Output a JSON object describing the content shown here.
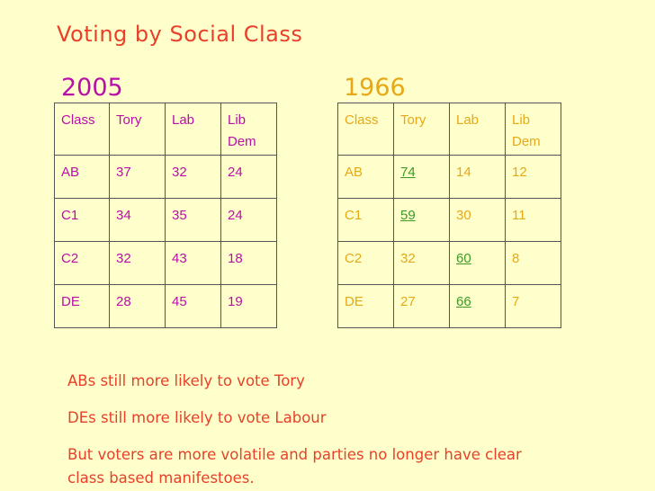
{
  "title": "Voting by Social Class",
  "table_2005": {
    "year": "2005",
    "headers": [
      "Class",
      "Tory",
      "Lab",
      "Lib Dem"
    ],
    "rows": [
      [
        "AB",
        "37",
        "32",
        "24"
      ],
      [
        "C1",
        "34",
        "35",
        "24"
      ],
      [
        "C2",
        "32",
        "43",
        "18"
      ],
      [
        "DE",
        "28",
        "45",
        "19"
      ]
    ]
  },
  "table_1966": {
    "year": "1966",
    "headers": [
      "Class",
      "Tory",
      "Lab",
      "Lib Dem"
    ],
    "rows": [
      [
        "AB",
        "74",
        "14",
        "12"
      ],
      [
        "C1",
        "59",
        "30",
        "11"
      ],
      [
        "C2",
        "32",
        "60",
        "8"
      ],
      [
        "DE",
        "27",
        "66",
        "7"
      ]
    ]
  },
  "notes": [
    "ABs still more likely to vote Tory",
    "DEs still more likely to vote Labour",
    "But voters are more volatile and parties no longer have clear class based manifestoes."
  ],
  "colors": {
    "background": "#ffffcc",
    "title": "#e8402a",
    "table_2005": "#b80fa8",
    "table_1966": "#e6a817",
    "highlight": "#3a9a22"
  }
}
